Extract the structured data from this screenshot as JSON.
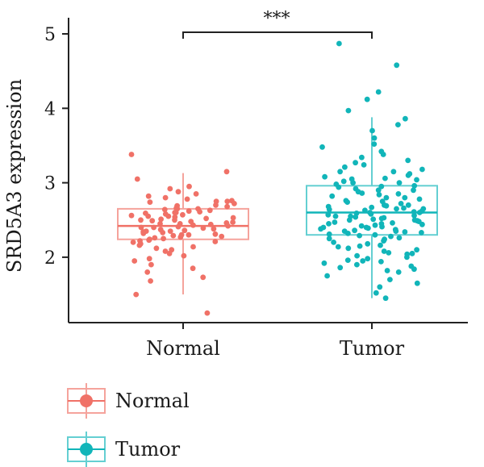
{
  "chart_data": {
    "type": "box",
    "title": "",
    "xlabel": "",
    "ylabel": "SRD5A3 expression",
    "ylim": [
      1.15,
      5.2
    ],
    "yticks": [
      2,
      3,
      4,
      5
    ],
    "categories": [
      "Normal",
      "Tumor"
    ],
    "significance": {
      "from": "Normal",
      "to": "Tumor",
      "label": "***"
    },
    "legend": {
      "placement": "bottom-left",
      "entries": [
        "Normal",
        "Tumor"
      ]
    },
    "series": [
      {
        "name": "Normal",
        "color": "#f07167",
        "box": {
          "whisker_low": 1.5,
          "q1": 2.24,
          "median": 2.42,
          "q3": 2.65,
          "whisker_high": 3.13
        },
        "points": [
          3.38,
          3.15,
          3.05,
          2.95,
          2.92,
          2.88,
          2.85,
          2.82,
          2.8,
          2.78,
          2.76,
          2.75,
          2.74,
          2.72,
          2.7,
          2.69,
          2.68,
          2.66,
          2.65,
          2.64,
          2.63,
          2.62,
          2.61,
          2.6,
          2.59,
          2.58,
          2.57,
          2.56,
          2.55,
          2.54,
          2.53,
          2.52,
          2.51,
          2.5,
          2.49,
          2.48,
          2.47,
          2.46,
          2.45,
          2.44,
          2.43,
          2.42,
          2.41,
          2.4,
          2.39,
          2.38,
          2.37,
          2.36,
          2.35,
          2.34,
          2.33,
          2.32,
          2.31,
          2.3,
          2.29,
          2.28,
          2.27,
          2.26,
          2.25,
          2.24,
          2.23,
          2.22,
          2.21,
          2.2,
          2.18,
          2.16,
          2.14,
          2.12,
          2.1,
          2.08,
          2.05,
          2.02,
          1.98,
          1.95,
          1.9,
          1.85,
          1.8,
          1.73,
          1.68,
          1.5,
          1.25,
          2.6,
          2.5,
          2.45,
          2.4,
          2.35,
          2.3,
          2.55,
          2.65,
          2.75
        ]
      },
      {
        "name": "Tumor",
        "color": "#11b5b9",
        "box": {
          "whisker_low": 1.45,
          "q1": 2.3,
          "median": 2.6,
          "q3": 2.96,
          "whisker_high": 3.88
        },
        "points": [
          4.87,
          4.58,
          4.22,
          4.12,
          3.97,
          3.86,
          3.78,
          3.7,
          3.6,
          3.52,
          3.48,
          3.42,
          3.38,
          3.34,
          3.3,
          3.27,
          3.24,
          3.21,
          3.18,
          3.15,
          3.12,
          3.1,
          3.08,
          3.06,
          3.04,
          3.02,
          3.0,
          2.98,
          2.96,
          2.94,
          2.92,
          2.9,
          2.88,
          2.86,
          2.84,
          2.82,
          2.8,
          2.78,
          2.76,
          2.74,
          2.72,
          2.7,
          2.69,
          2.68,
          2.67,
          2.66,
          2.65,
          2.64,
          2.63,
          2.62,
          2.61,
          2.6,
          2.59,
          2.58,
          2.57,
          2.56,
          2.55,
          2.54,
          2.53,
          2.52,
          2.51,
          2.5,
          2.49,
          2.48,
          2.47,
          2.46,
          2.45,
          2.44,
          2.43,
          2.42,
          2.41,
          2.4,
          2.39,
          2.38,
          2.37,
          2.36,
          2.35,
          2.34,
          2.33,
          2.32,
          2.31,
          2.3,
          2.29,
          2.28,
          2.26,
          2.24,
          2.22,
          2.2,
          2.18,
          2.16,
          2.14,
          2.12,
          2.1,
          2.08,
          2.06,
          2.04,
          2.02,
          2.0,
          1.98,
          1.96,
          1.94,
          1.92,
          1.9,
          1.88,
          1.86,
          1.84,
          1.82,
          1.8,
          1.75,
          1.7,
          1.65,
          1.6,
          1.52,
          1.45,
          2.7,
          2.6,
          2.5,
          2.4,
          2.8,
          2.9,
          3.0,
          2.55,
          2.65,
          2.45,
          2.35,
          2.75,
          2.85,
          2.95,
          3.05,
          3.15,
          2.25,
          2.15,
          2.05,
          1.95
        ]
      }
    ]
  }
}
